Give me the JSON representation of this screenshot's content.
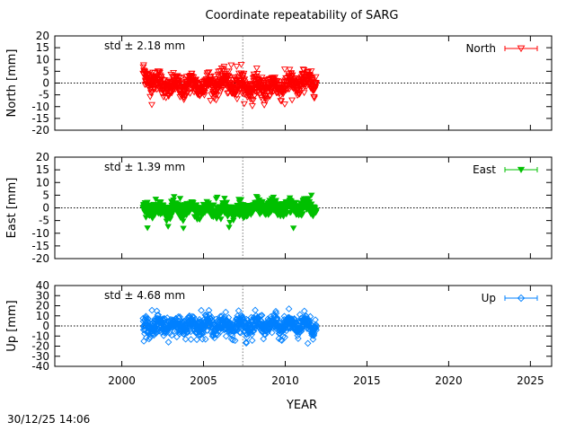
{
  "chart_data": {
    "type": "scatter",
    "title": "Coordinate repeatability of SARG",
    "xlabel": "YEAR",
    "xlim": [
      1995.9,
      2026.3
    ],
    "x_ticks": [
      2000,
      2005,
      2010,
      2015,
      2020,
      2025
    ],
    "data_range": [
      2001.3,
      2011.9
    ],
    "reference_epoch": 2007.4,
    "timestamp": "30/12/25 14:06",
    "panels": [
      {
        "key": "north",
        "ylabel": "North [mm]",
        "legend": "North",
        "std_label": "std ± 2.18 mm",
        "std_mm": 2.18,
        "color": "#ff0000",
        "marker": "triangle-down-open",
        "ylim": [
          -20,
          20
        ],
        "y_ticks": [
          -20,
          -15,
          -10,
          -5,
          0,
          5,
          10,
          15,
          20
        ],
        "series_trend": [
          [
            2001.4,
            3
          ],
          [
            2002.2,
            0
          ],
          [
            2003.0,
            -2
          ],
          [
            2004.0,
            -1
          ],
          [
            2005.0,
            -1
          ],
          [
            2006.2,
            0
          ],
          [
            2007.0,
            -1
          ],
          [
            2008.0,
            -2
          ],
          [
            2009.0,
            -2
          ],
          [
            2010.0,
            -1
          ],
          [
            2011.0,
            0
          ],
          [
            2011.9,
            1
          ]
        ],
        "spread": 4.0,
        "min_max": [
          -10,
          8
        ]
      },
      {
        "key": "east",
        "ylabel": "East [mm]",
        "legend": "East",
        "std_label": "std ± 1.39 mm",
        "std_mm": 1.39,
        "color": "#00c000",
        "marker": "triangle-down-filled",
        "ylim": [
          -20,
          20
        ],
        "y_ticks": [
          -20,
          -15,
          -10,
          -5,
          0,
          5,
          10,
          15,
          20
        ],
        "series_trend": [
          [
            2001.4,
            0
          ],
          [
            2003.0,
            -1
          ],
          [
            2005.0,
            -1
          ],
          [
            2007.0,
            -1
          ],
          [
            2009.0,
            0
          ],
          [
            2011.9,
            0
          ]
        ],
        "spread": 2.5,
        "min_max": [
          -9,
          5
        ]
      },
      {
        "key": "up",
        "ylabel": "Up [mm]",
        "legend": "Up",
        "std_label": "std ± 4.68 mm",
        "std_mm": 4.68,
        "color": "#0080ff",
        "marker": "diamond-open",
        "ylim": [
          -40,
          40
        ],
        "y_ticks": [
          -40,
          -30,
          -20,
          -10,
          0,
          10,
          20,
          30,
          40
        ],
        "series_trend": [
          [
            2001.4,
            0
          ],
          [
            2003.0,
            0
          ],
          [
            2005.0,
            1
          ],
          [
            2007.0,
            0
          ],
          [
            2009.0,
            1
          ],
          [
            2011.9,
            0
          ]
        ],
        "spread": 8.0,
        "min_max": [
          -18,
          18
        ]
      }
    ]
  }
}
